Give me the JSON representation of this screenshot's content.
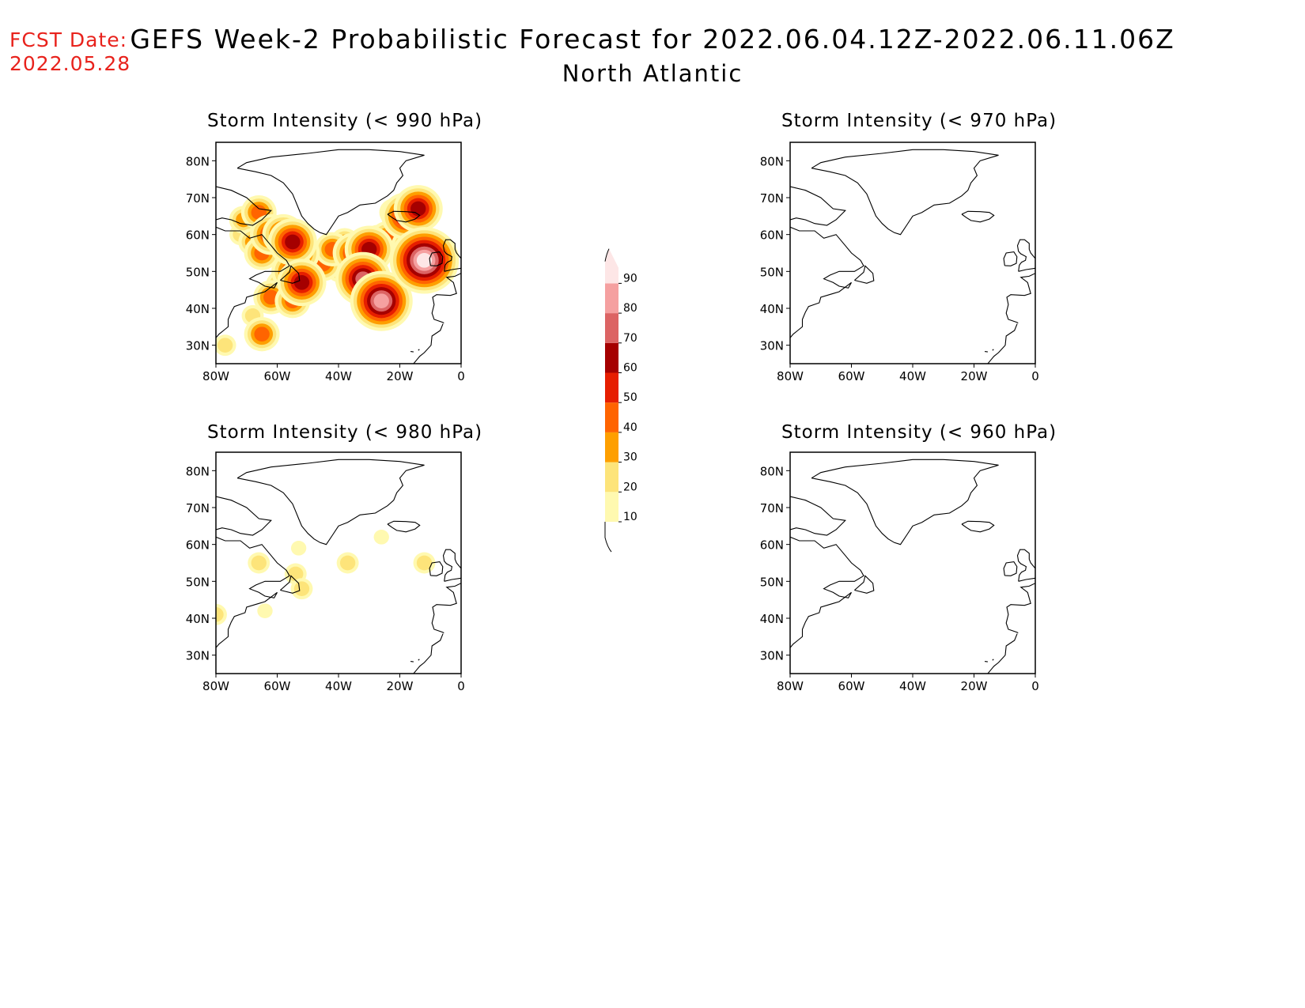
{
  "header": {
    "fcst_label": "FCST Date:",
    "fcst_date": "2022.05.28",
    "title": "GEFS Week-2 Probabilistic Forecast for 2022.06.04.12Z-2022.06.11.06Z",
    "region": "North Atlantic"
  },
  "panels": [
    {
      "id": "p990",
      "title": "Storm Intensity (< 990 hPa)"
    },
    {
      "id": "p970",
      "title": "Storm Intensity (< 970 hPa)"
    },
    {
      "id": "p980",
      "title": "Storm Intensity (< 980 hPa)"
    },
    {
      "id": "p960",
      "title": "Storm Intensity (< 960 hPa)"
    }
  ],
  "axes": {
    "lon_labels": [
      "80W",
      "60W",
      "40W",
      "20W",
      "0"
    ],
    "lat_labels": [
      "80N",
      "70N",
      "60N",
      "50N",
      "40N",
      "30N"
    ],
    "lon_values": [
      -80,
      -60,
      -40,
      -20,
      0
    ],
    "lat_values": [
      80,
      70,
      60,
      50,
      40,
      30
    ],
    "lon_range": [
      -80,
      0
    ],
    "lat_range": [
      25,
      85
    ]
  },
  "colorbar": {
    "levels": [
      10,
      20,
      30,
      40,
      50,
      60,
      70,
      80,
      90
    ],
    "labels": [
      "10",
      "20",
      "30",
      "40",
      "50",
      "60",
      "70",
      "80",
      "90"
    ],
    "colors": [
      "#fff9b0",
      "#fde47a",
      "#fe9f00",
      "#ff6400",
      "#e61e00",
      "#a50000",
      "#dc6464",
      "#f5a0a0",
      "#fde6e6"
    ]
  },
  "colors": {
    "fcst_text": "#e8221c"
  },
  "probability_data": {
    "p990": [
      {
        "lon": -71,
        "lat": 64,
        "p": 30
      },
      {
        "lon": -66,
        "lat": 66,
        "p": 40
      },
      {
        "lon": -72,
        "lat": 60,
        "p": 20
      },
      {
        "lon": -68,
        "lat": 58,
        "p": 30
      },
      {
        "lon": -65,
        "lat": 55,
        "p": 40
      },
      {
        "lon": -62,
        "lat": 60,
        "p": 50
      },
      {
        "lon": -58,
        "lat": 60,
        "p": 50
      },
      {
        "lon": -55,
        "lat": 58,
        "p": 60
      },
      {
        "lon": -53,
        "lat": 55,
        "p": 50
      },
      {
        "lon": -50,
        "lat": 52,
        "p": 40
      },
      {
        "lon": -55,
        "lat": 50,
        "p": 50
      },
      {
        "lon": -52,
        "lat": 47,
        "p": 60
      },
      {
        "lon": -58,
        "lat": 46,
        "p": 40
      },
      {
        "lon": -62,
        "lat": 43,
        "p": 40
      },
      {
        "lon": -55,
        "lat": 42,
        "p": 40
      },
      {
        "lon": -50,
        "lat": 45,
        "p": 30
      },
      {
        "lon": -45,
        "lat": 52,
        "p": 40
      },
      {
        "lon": -42,
        "lat": 56,
        "p": 40
      },
      {
        "lon": -38,
        "lat": 58,
        "p": 30
      },
      {
        "lon": -35,
        "lat": 55,
        "p": 50
      },
      {
        "lon": -30,
        "lat": 56,
        "p": 60
      },
      {
        "lon": -27,
        "lat": 58,
        "p": 40
      },
      {
        "lon": -24,
        "lat": 59,
        "p": 40
      },
      {
        "lon": -20,
        "lat": 60,
        "p": 30
      },
      {
        "lon": -17,
        "lat": 57,
        "p": 40
      },
      {
        "lon": -13,
        "lat": 55,
        "p": 50
      },
      {
        "lon": -12,
        "lat": 53,
        "p": 90
      },
      {
        "lon": -18,
        "lat": 65,
        "p": 60
      },
      {
        "lon": -14,
        "lat": 67,
        "p": 60
      },
      {
        "lon": -22,
        "lat": 66,
        "p": 30
      },
      {
        "lon": -32,
        "lat": 48,
        "p": 70
      },
      {
        "lon": -26,
        "lat": 42,
        "p": 80
      },
      {
        "lon": -68,
        "lat": 38,
        "p": 20
      },
      {
        "lon": -65,
        "lat": 33,
        "p": 40
      },
      {
        "lon": -77,
        "lat": 30,
        "p": 20
      },
      {
        "lon": -40,
        "lat": 50,
        "p": 20
      }
    ],
    "p980": [
      {
        "lon": -54,
        "lat": 52,
        "p": 20
      },
      {
        "lon": -52,
        "lat": 48,
        "p": 20
      },
      {
        "lon": -66,
        "lat": 55,
        "p": 20
      },
      {
        "lon": -53,
        "lat": 59,
        "p": 10
      },
      {
        "lon": -26,
        "lat": 62,
        "p": 10
      },
      {
        "lon": -12,
        "lat": 55,
        "p": 20
      },
      {
        "lon": -37,
        "lat": 55,
        "p": 20
      },
      {
        "lon": -64,
        "lat": 42,
        "p": 10
      },
      {
        "lon": -80,
        "lat": 41,
        "p": 20
      }
    ],
    "p970": [],
    "p960": []
  }
}
